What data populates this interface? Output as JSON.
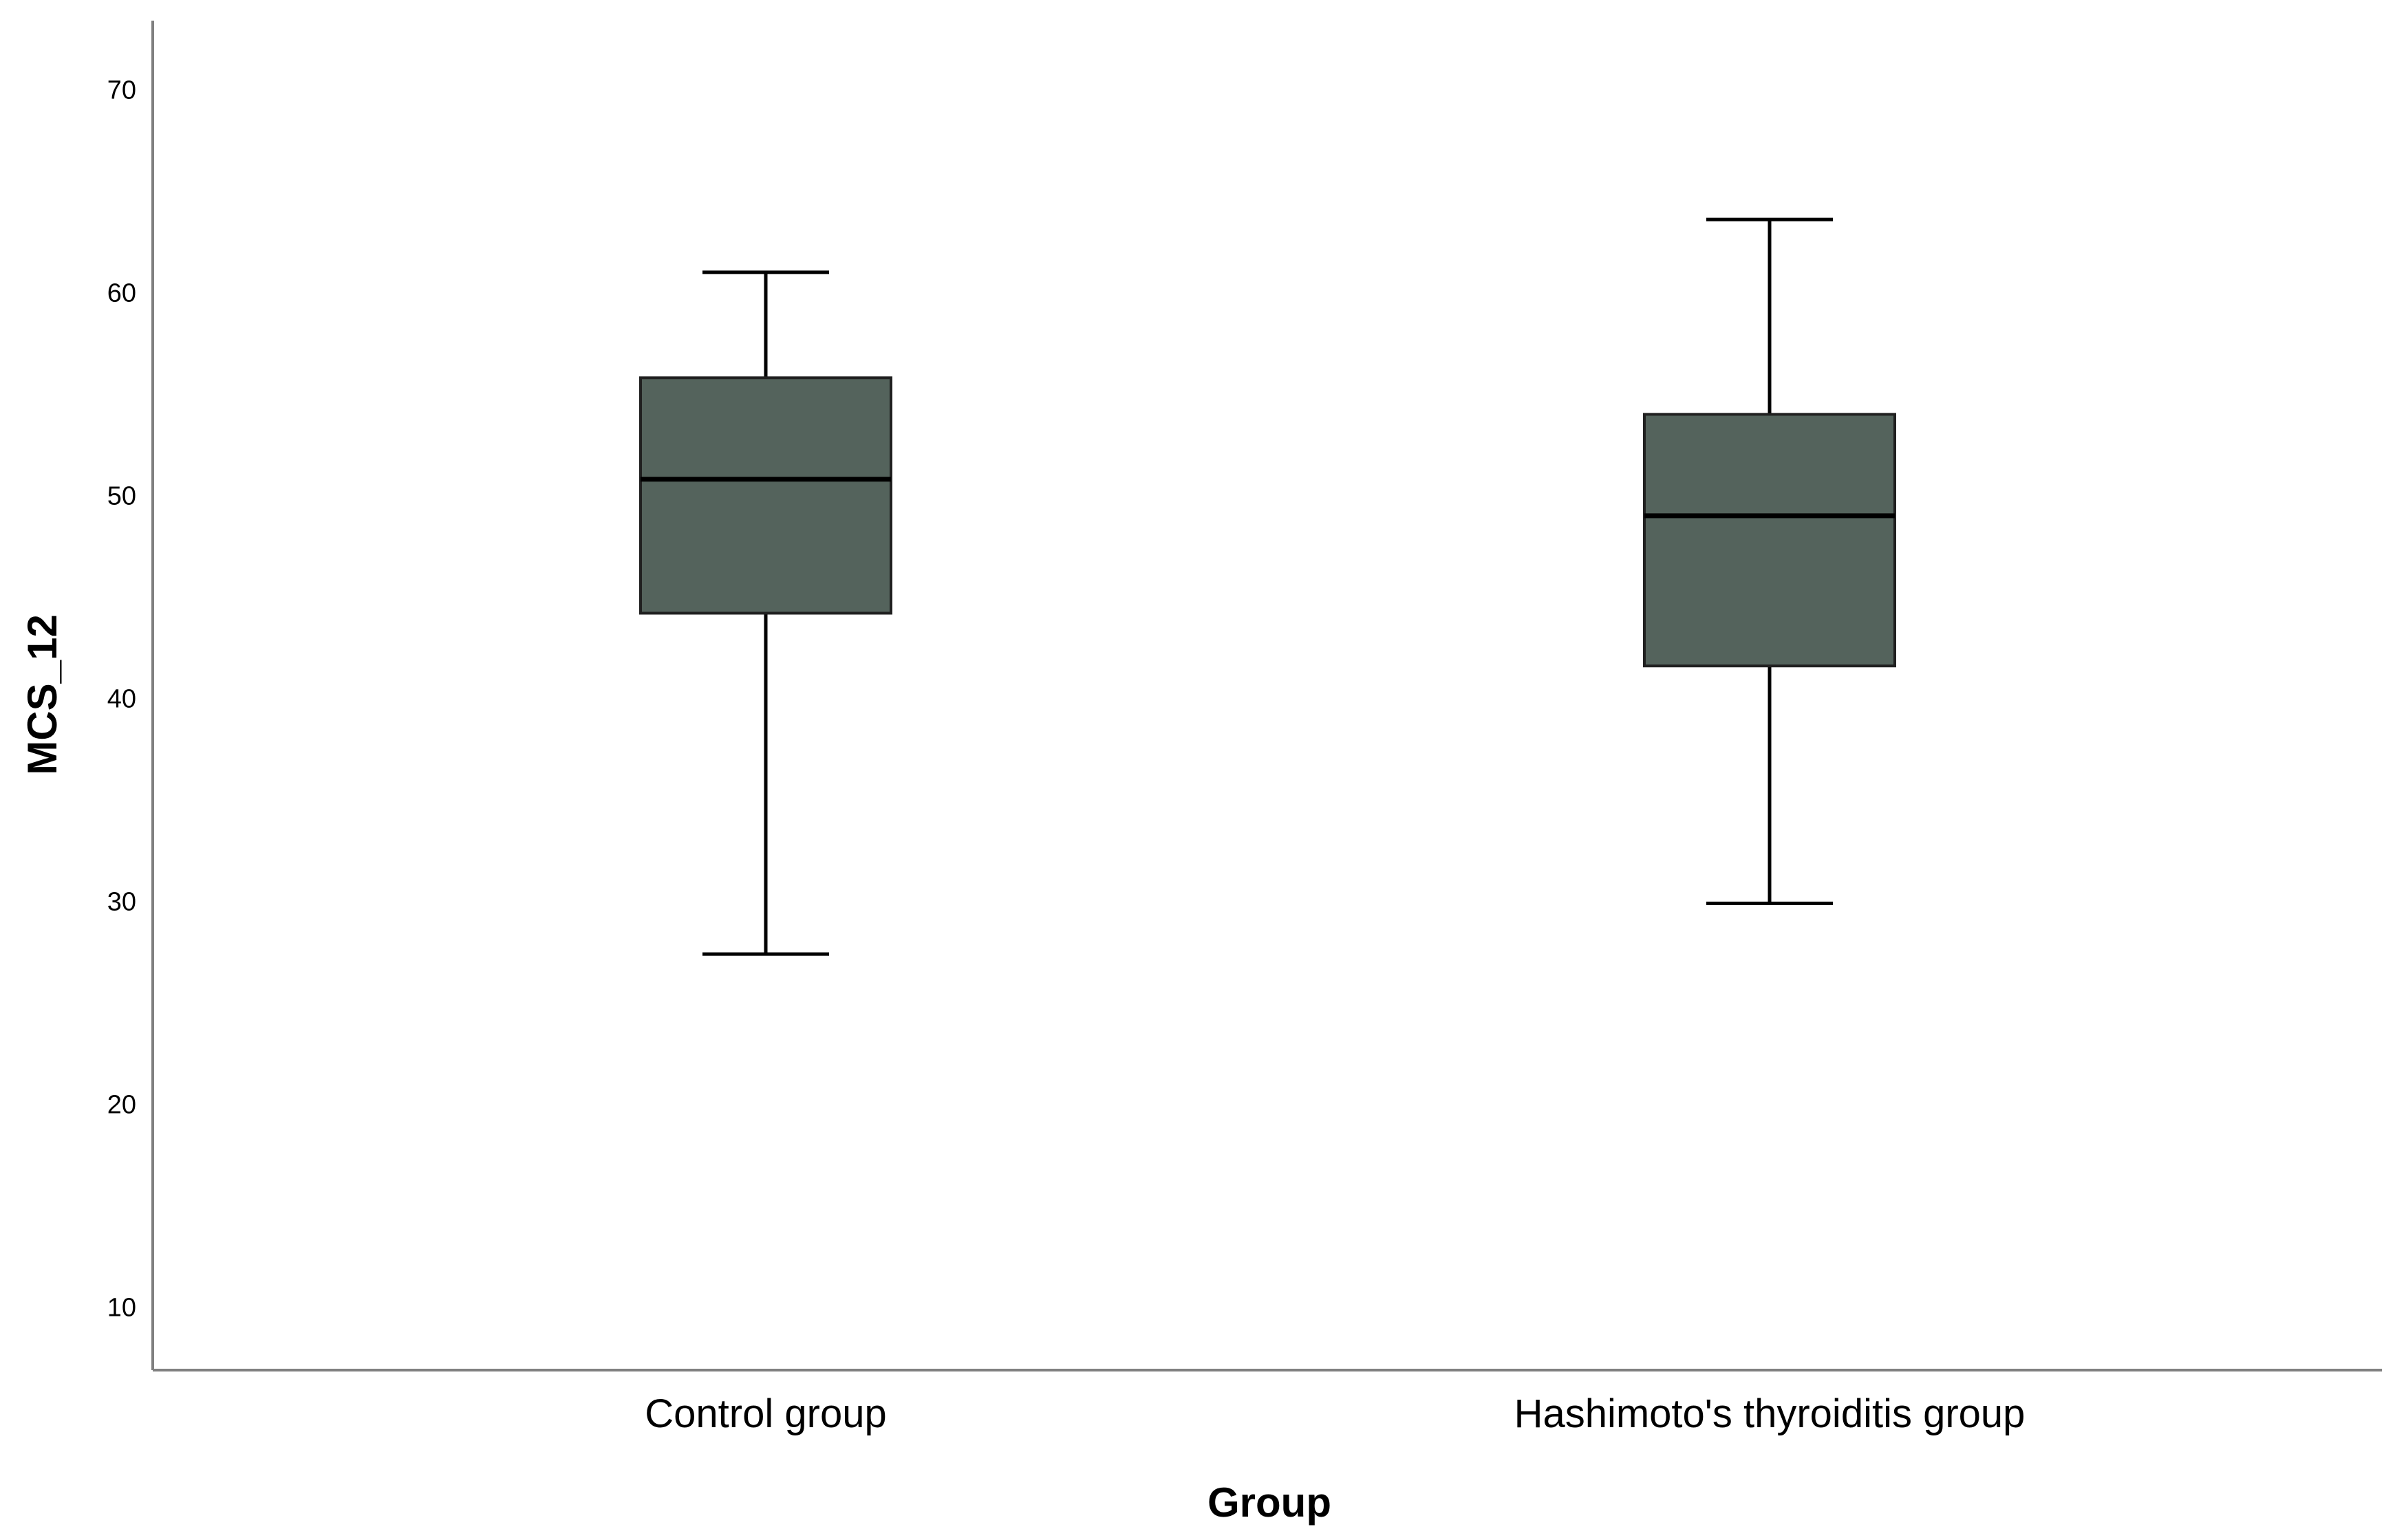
{
  "chart_data": {
    "type": "boxplot",
    "title": "",
    "xlabel": "Group",
    "ylabel": "MCS_12",
    "categories": [
      "Control group",
      "Hashimoto's thyroiditis group"
    ],
    "boxes": [
      {
        "category": "Control group",
        "whisker_low": 27.4,
        "q1": 44.2,
        "median": 50.8,
        "q3": 55.8,
        "whisker_high": 61.0
      },
      {
        "category": "Hashimoto's thyroiditis group",
        "whisker_low": 29.9,
        "q1": 41.6,
        "median": 49.0,
        "q3": 54.0,
        "whisker_high": 63.6
      }
    ],
    "yticks": [
      10,
      20,
      30,
      40,
      50,
      60,
      70
    ],
    "ylim": [
      6.9,
      73.4
    ],
    "grid": false,
    "colors": {
      "box_fill": "#54635c",
      "box_stroke": "#202020",
      "whisker": "#000000",
      "median": "#000000",
      "axis": "#808080"
    }
  }
}
